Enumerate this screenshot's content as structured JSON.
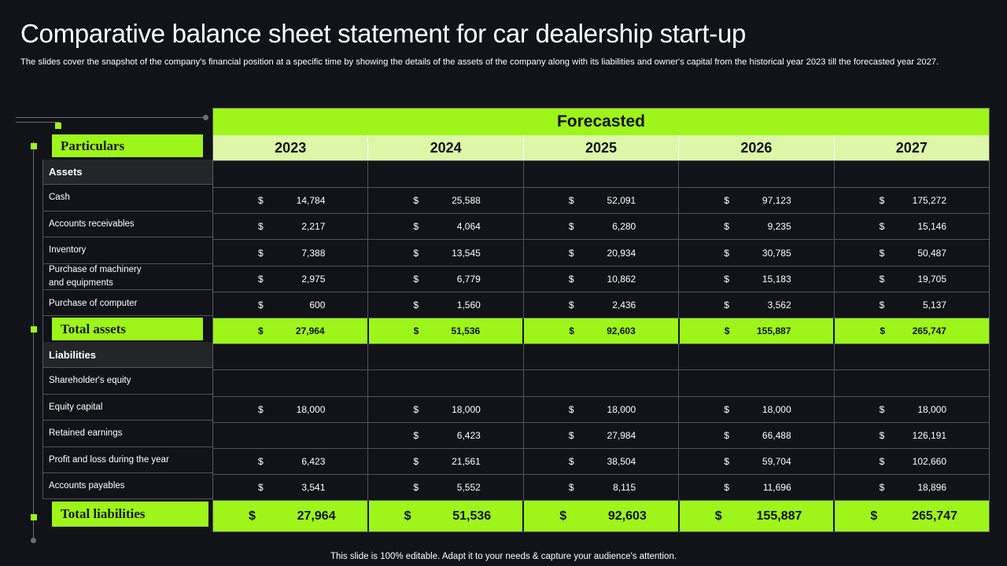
{
  "title": "Comparative balance sheet statement for car dealership start-up",
  "subtitle": "The slides cover the snapshot of the company's financial position at a specific time by showing the details of the assets of the company along with its liabilities and owner's capital from the historical year 2023 till the forecasted year 2027.",
  "footer": "This slide is 100% editable. Adapt it to your needs & capture your audience's attention.",
  "colors": {
    "accent": "#9ef51a",
    "accent_light": "#dcf7a8",
    "background": "#111318"
  },
  "table": {
    "forecast_header": "Forecasted",
    "particulars_label": "Particulars",
    "total_assets_label": "Total assets",
    "total_liabilities_label": "Total liabilities",
    "currency": "$",
    "years": [
      "2023",
      "2024",
      "2025",
      "2026",
      "2027"
    ],
    "sections": {
      "assets": "Assets",
      "liabilities": "Liabilities"
    },
    "rows": {
      "assets_header": {
        "values": [
          "",
          "",
          "",
          "",
          ""
        ]
      },
      "cash": {
        "label": "Cash",
        "values": [
          "14,784",
          "25,588",
          "52,091",
          "97,123",
          "175,272"
        ]
      },
      "receivables": {
        "label": "Accounts  receivables",
        "values": [
          "2,217",
          "4,064",
          "6,280",
          "9,235",
          "15,146"
        ]
      },
      "inventory": {
        "label": "Inventory",
        "values": [
          "7,388",
          "13,545",
          "20,934",
          "30,785",
          "50,487"
        ]
      },
      "machinery": {
        "label_line1": "Purchase of machinery",
        "label_line2": "and equipments",
        "values": [
          "2,975",
          "6,779",
          "10,862",
          "15,183",
          "19,705"
        ]
      },
      "computer": {
        "label": "Purchase of computer",
        "values": [
          "600",
          "1,560",
          "2,436",
          "3,562",
          "5,137"
        ]
      },
      "total_assets": {
        "values": [
          "27,964",
          "51,536",
          "92,603",
          "155,887",
          "265,747"
        ]
      },
      "shareholders_equity": {
        "label": "Shareholder's equity"
      },
      "equity_capital": {
        "label": "Equity capital",
        "values": [
          "18,000",
          "18,000",
          "18,000",
          "18,000",
          "18,000"
        ]
      },
      "retained_earnings": {
        "label": "Retained earnings",
        "values": [
          "",
          "6,423",
          "27,984",
          "66,488",
          "126,191"
        ]
      },
      "profit_loss": {
        "label": "Profit and loss  during the year",
        "values": [
          "6,423",
          "21,561",
          "38,504",
          "59,704",
          "102,660"
        ]
      },
      "payables": {
        "label": "Accounts  payables",
        "values": [
          "3,541",
          "5,552",
          "8,115",
          "11,696",
          "18,896"
        ]
      },
      "total_liabilities": {
        "values": [
          "27,964",
          "51,536",
          "92,603",
          "155,887",
          "265,747"
        ]
      }
    }
  }
}
